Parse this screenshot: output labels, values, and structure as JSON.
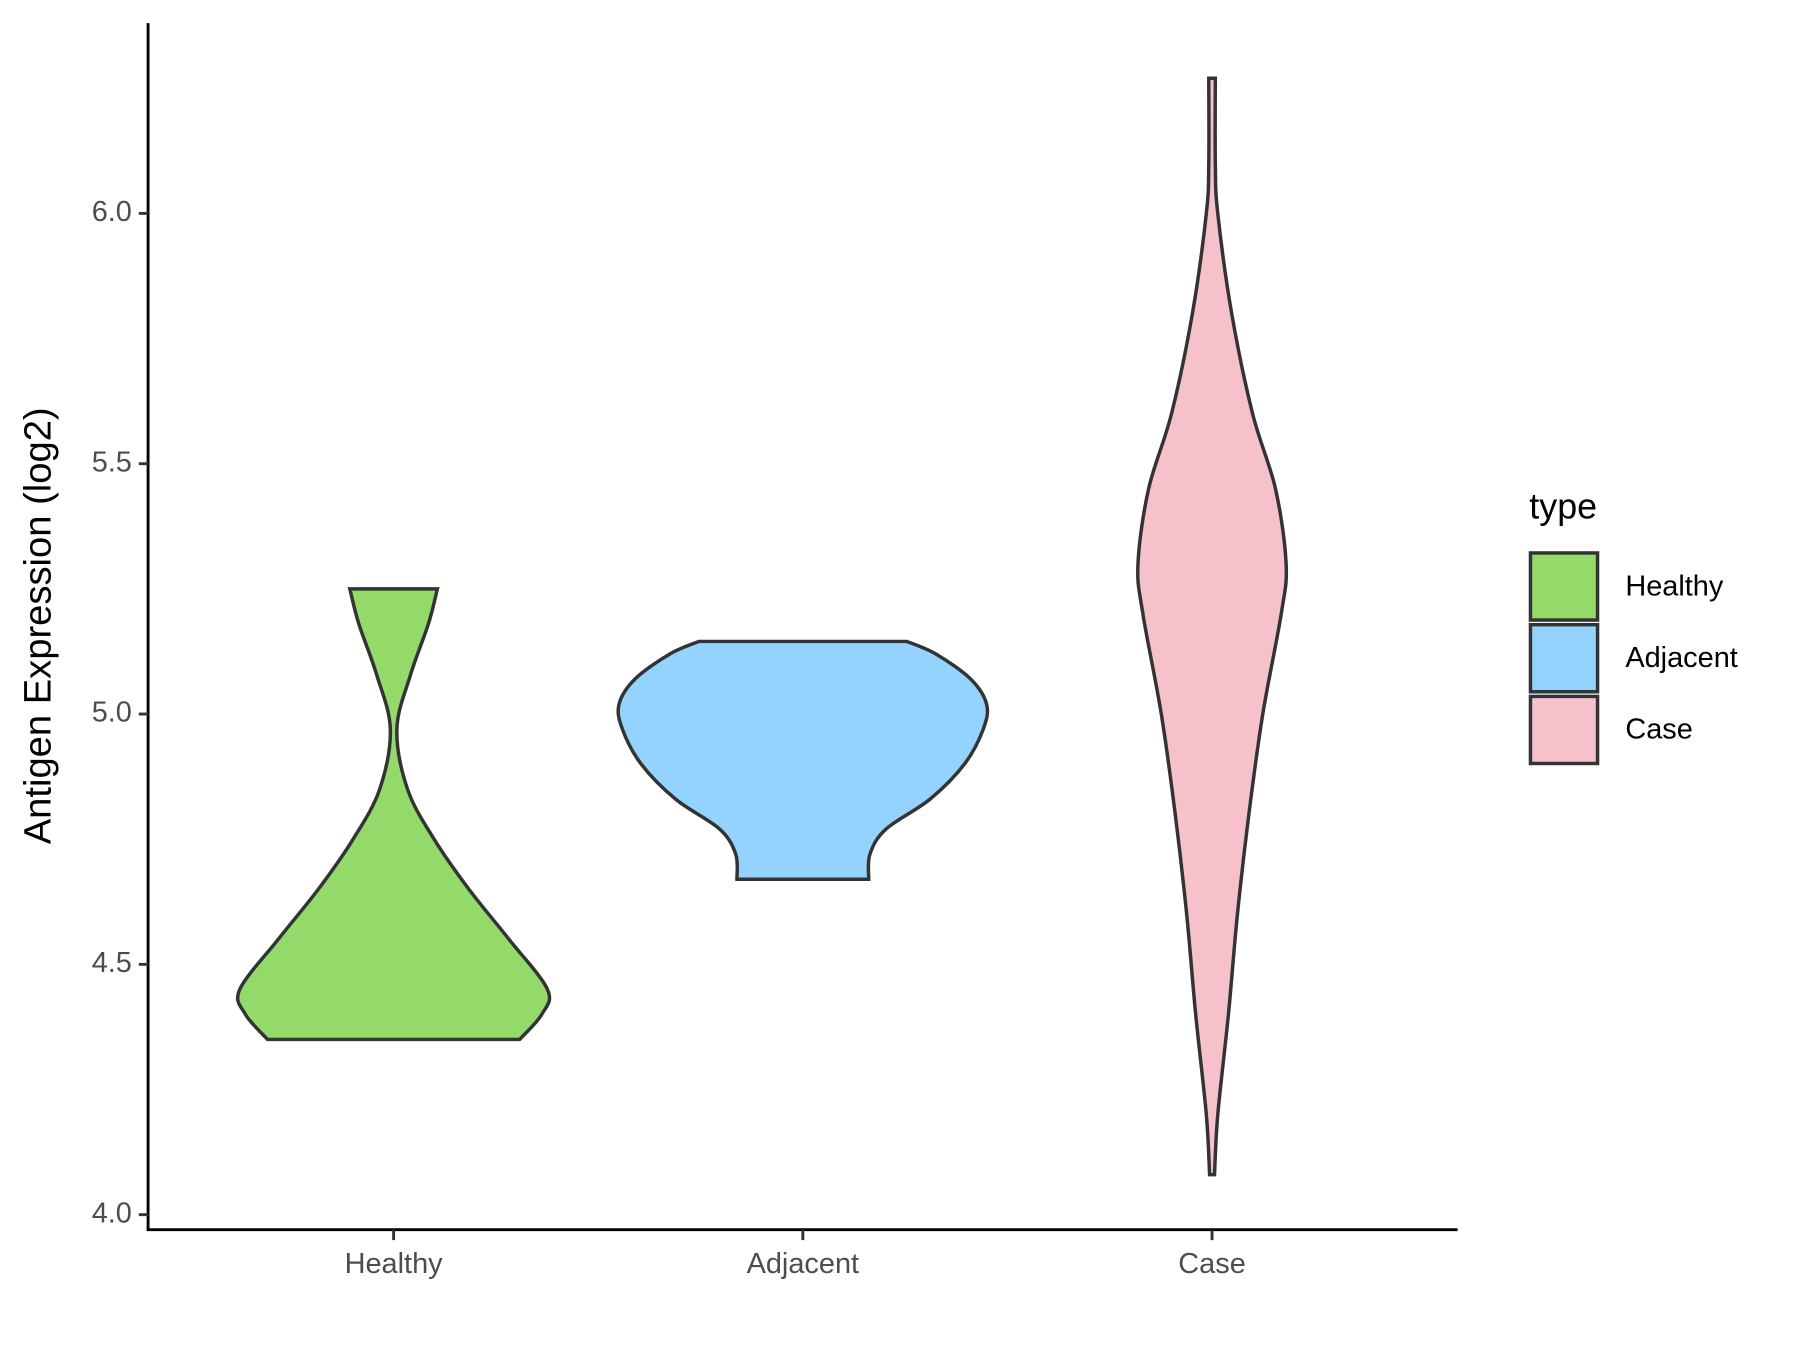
{
  "chart_data": {
    "type": "violin",
    "y_label": "Antigen Expression (log2)",
    "categories": [
      "Healthy",
      "Adjacent",
      "Case"
    ],
    "legend_title": "type",
    "legend_position": "right",
    "ylim": [
      3.97,
      6.38
    ],
    "yticks": [
      {
        "value": 4,
        "label": "4.0"
      },
      {
        "value": 4.5,
        "label": "4.5"
      },
      {
        "value": 5,
        "label": "5.0"
      },
      {
        "value": 5.5,
        "label": "5.5"
      },
      {
        "value": 6,
        "label": "6.0"
      }
    ],
    "series": [
      {
        "name": "Healthy",
        "color": "#93da6a",
        "y": [
          4.35,
          4.4,
          4.45,
          4.55,
          4.65,
          4.75,
          4.85,
          4.97,
          5.08,
          5.18,
          5.25
        ],
        "widths": [
          0.308,
          0.362,
          0.376,
          0.282,
          0.184,
          0.099,
          0.034,
          0.008,
          0.042,
          0.085,
          0.107
        ]
      },
      {
        "name": "Adjacent",
        "color": "#93d3fe",
        "y": [
          4.67,
          4.72,
          4.77,
          4.83,
          4.9,
          4.97,
          5.02,
          5.07,
          5.12,
          5.145
        ],
        "widths": [
          0.161,
          0.164,
          0.203,
          0.311,
          0.395,
          0.441,
          0.449,
          0.41,
          0.325,
          0.254
        ]
      },
      {
        "name": "Case",
        "color": "#f7c1cc",
        "y": [
          4.08,
          4.2,
          4.4,
          4.6,
          4.8,
          5.0,
          5.2,
          5.3,
          5.45,
          5.6,
          5.8,
          6.0,
          6.1,
          6.27
        ],
        "widths": [
          0.006,
          0.014,
          0.04,
          0.062,
          0.09,
          0.124,
          0.169,
          0.181,
          0.155,
          0.099,
          0.048,
          0.014,
          0.008,
          0.008
        ]
      }
    ]
  }
}
